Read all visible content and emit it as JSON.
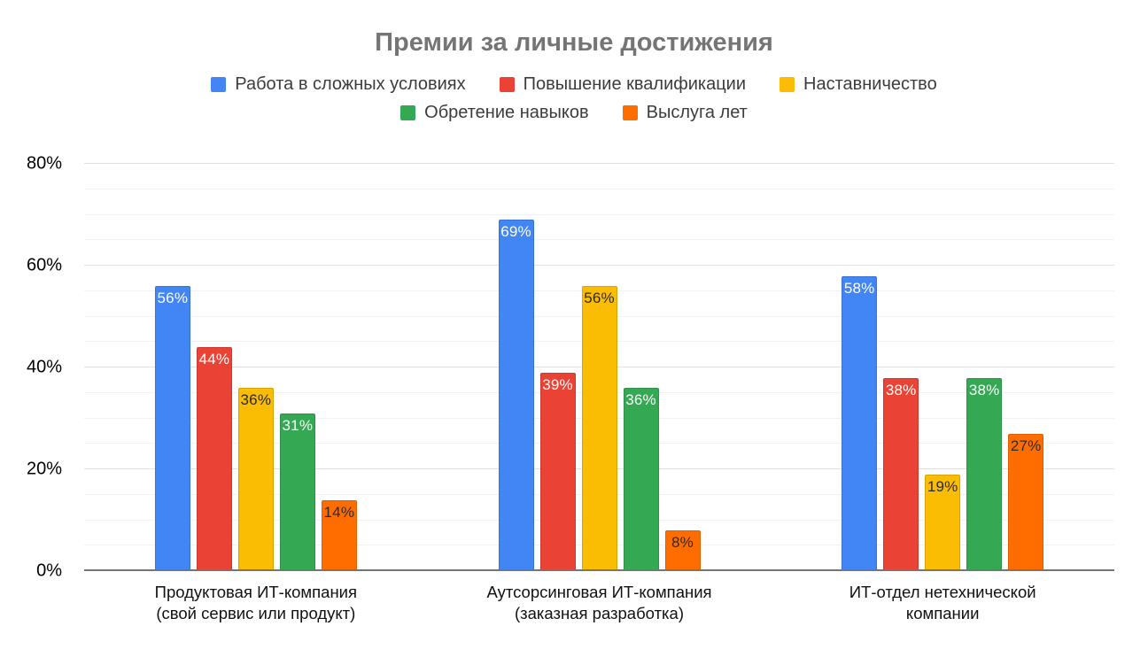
{
  "chart_data": {
    "type": "bar",
    "title": "Премии за личные достижения",
    "categories": [
      "Продуктовая ИТ-компания\n(свой сервис или продукт)",
      "Аутсорсинговая ИТ-компания\n(заказная разработка)",
      "ИТ-отдел нетехнической\nкомпании"
    ],
    "series": [
      {
        "id": "difficult-conditions",
        "name": "Работа в сложных условиях",
        "color": "#4285F4",
        "label_color": "#ffffff",
        "values": [
          56,
          69,
          58
        ]
      },
      {
        "id": "qualification-improvement",
        "name": "Повышение квалификации",
        "color": "#EA4335",
        "label_color": "#ffffff",
        "values": [
          44,
          39,
          38
        ]
      },
      {
        "id": "mentorship",
        "name": "Наставничество",
        "color": "#FBBC04",
        "label_color": "#2b2b2b",
        "values": [
          36,
          56,
          19
        ]
      },
      {
        "id": "skill-acquisition",
        "name": "Обретение навыков",
        "color": "#34A853",
        "label_color": "#ffffff",
        "values": [
          31,
          36,
          38
        ]
      },
      {
        "id": "seniority",
        "name": "Выслуга лет",
        "color": "#FF6D01",
        "label_color": "#2b2b2b",
        "values": [
          14,
          8,
          27
        ]
      }
    ],
    "ylim": [
      0,
      80
    ],
    "y_major_step": 20,
    "y_minor_step": 5,
    "y_tick_labels": [
      "0%",
      "20%",
      "40%",
      "60%",
      "80%"
    ],
    "value_suffix": "%",
    "grid": true,
    "legend_position": "top"
  }
}
